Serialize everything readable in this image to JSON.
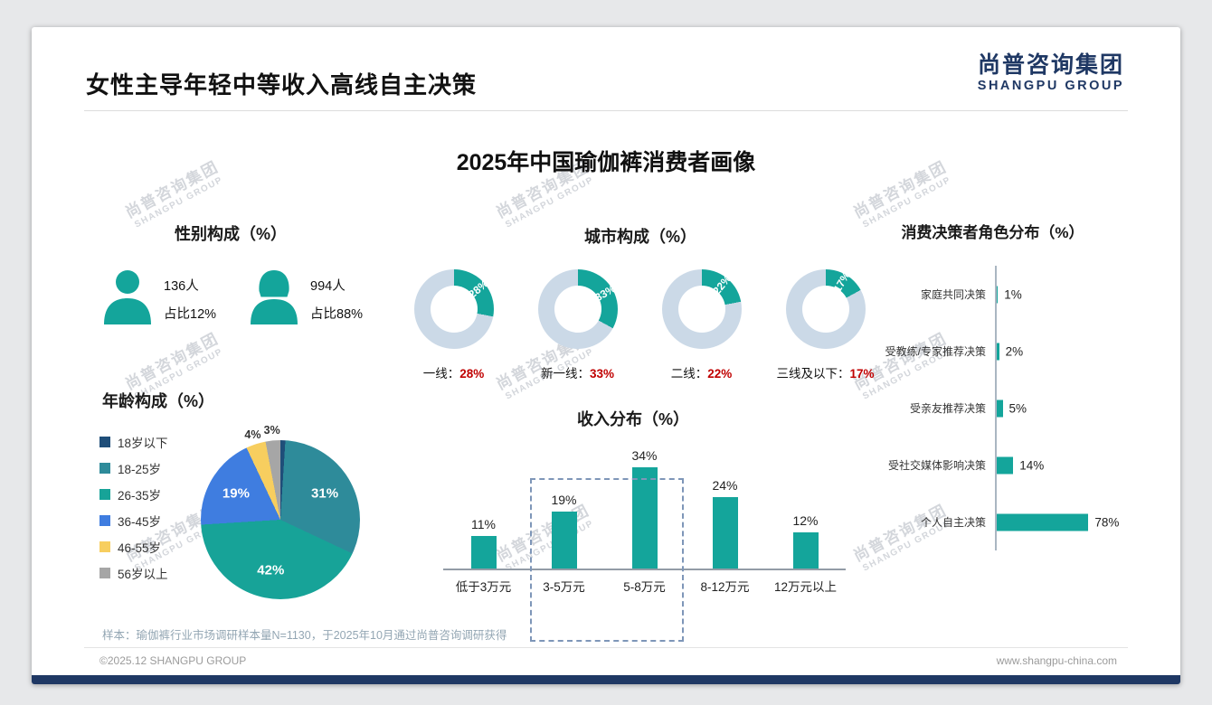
{
  "page": {
    "title": "女性主导年轻中等收入高线自主决策",
    "subtitle": "2025年中国瑜伽裤消费者画像",
    "logo": {
      "cn": "尚普咨询集团",
      "en": "SHANGPU GROUP"
    },
    "watermark": {
      "line1": "尚普咨询集团",
      "line2": "SHANGPU GROUP"
    },
    "footer": {
      "note": "样本：瑜伽裤行业市场调研样本量N=1130，于2025年10月通过尚普咨询调研获得",
      "copyright": "©2025.12 SHANGPU GROUP",
      "website": "www.shangpu-china.com"
    }
  },
  "colors": {
    "teal": "#14A59B",
    "navy": "#1F3864",
    "red": "#C00000",
    "donut_rest": "#CBD9E7"
  },
  "chart_data": [
    {
      "type": "pictogram",
      "title": "性别构成（%）",
      "items": [
        {
          "icon": "male",
          "count": "136人",
          "share": "占比12%",
          "value": 12
        },
        {
          "icon": "female",
          "count": "994人",
          "share": "占比88%",
          "value": 88
        }
      ]
    },
    {
      "type": "pie",
      "subtype": "donut-set",
      "title": "城市构成（%）",
      "items": [
        {
          "label": "一线",
          "value": 28
        },
        {
          "label": "新一线",
          "value": 33
        },
        {
          "label": "二线",
          "value": 22
        },
        {
          "label": "三线及以下",
          "value": 17
        }
      ],
      "unit": "%"
    },
    {
      "type": "bar",
      "subtype": "horizontal",
      "title": "消费决策者角色分布（%）",
      "categories": [
        "家庭共同决策",
        "受教练/专家推荐决策",
        "受亲友推荐决策",
        "受社交媒体影响决策",
        "个人自主决策"
      ],
      "values": [
        1,
        2,
        5,
        14,
        78
      ],
      "unit": "%",
      "xlim": [
        0,
        100
      ]
    },
    {
      "type": "pie",
      "title": "年龄构成（%）",
      "categories": [
        "18岁以下",
        "18-25岁",
        "26-35岁",
        "36-45岁",
        "46-55岁",
        "56岁以上"
      ],
      "values": [
        1,
        31,
        42,
        19,
        4,
        3
      ],
      "colors": [
        "#1F4E79",
        "#2E8B9A",
        "#17A398",
        "#3F7DE0",
        "#F7CE5F",
        "#A6A6A6"
      ],
      "legend_position": "left",
      "unit": "%"
    },
    {
      "type": "bar",
      "title": "收入分布（%）",
      "categories": [
        "低于3万元",
        "3-5万元",
        "5-8万元",
        "8-12万元",
        "12万元以上"
      ],
      "values": [
        11,
        19,
        34,
        24,
        12
      ],
      "unit": "%",
      "ylim": [
        0,
        40
      ],
      "highlight": {
        "categories": [
          "3-5万元",
          "5-8万元"
        ],
        "style": "dashed-box"
      }
    }
  ]
}
